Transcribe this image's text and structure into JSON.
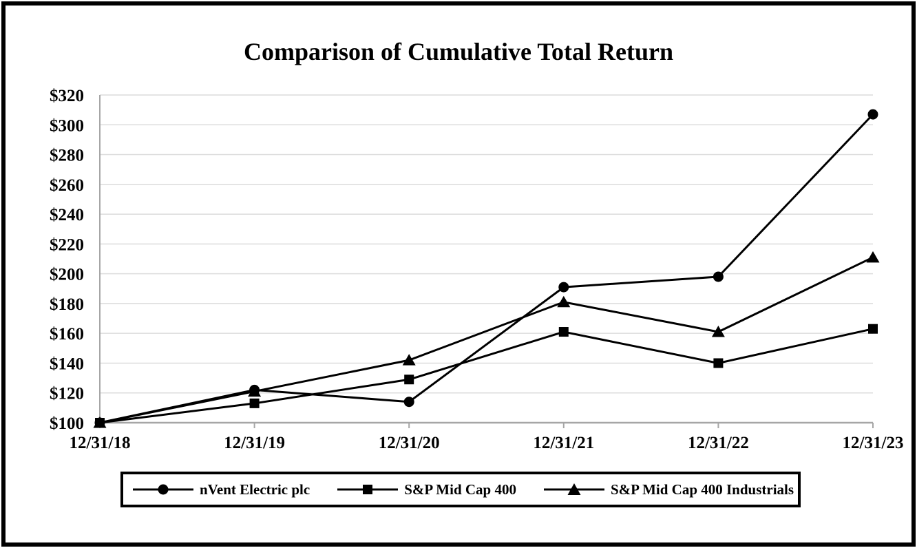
{
  "figure": {
    "title": "Comparison of Cumulative Total Return"
  },
  "chart_data": {
    "type": "line",
    "title": "Comparison of Cumulative Total Return",
    "xlabel": "",
    "ylabel": "",
    "x_labels": [
      "12/31/18",
      "12/31/19",
      "12/31/20",
      "12/31/21",
      "12/31/22",
      "12/31/23"
    ],
    "ylim": [
      100,
      320
    ],
    "y_ticks": [
      {
        "label": "$100",
        "value": 100
      },
      {
        "label": "$120",
        "value": 120
      },
      {
        "label": "$140",
        "value": 140
      },
      {
        "label": "$160",
        "value": 160
      },
      {
        "label": "$180",
        "value": 180
      },
      {
        "label": "$200",
        "value": 200
      },
      {
        "label": "$220",
        "value": 220
      },
      {
        "label": "$240",
        "value": 240
      },
      {
        "label": "$260",
        "value": 260
      },
      {
        "label": "$280",
        "value": 280
      },
      {
        "label": "$300",
        "value": 300
      },
      {
        "label": "$320",
        "value": 320
      }
    ],
    "grid": true,
    "legend_position": "bottom",
    "series": [
      {
        "name": "nVent Electric plc",
        "marker": "circle",
        "values": [
          100,
          122,
          114,
          191,
          198,
          307
        ]
      },
      {
        "name": "S&P Mid Cap 400",
        "marker": "square",
        "values": [
          100,
          113,
          129,
          161,
          140,
          163
        ]
      },
      {
        "name": "S&P Mid Cap 400 Industrials",
        "marker": "triangle",
        "values": [
          100,
          121,
          142,
          181,
          161,
          211
        ]
      }
    ],
    "colors": {
      "series_line": "#000000",
      "marker_fill": "#000000",
      "gridline": "#dcdcdc",
      "axis": "#a6a6a6",
      "text": "#000000",
      "border": "#000000",
      "background": "#ffffff"
    }
  }
}
